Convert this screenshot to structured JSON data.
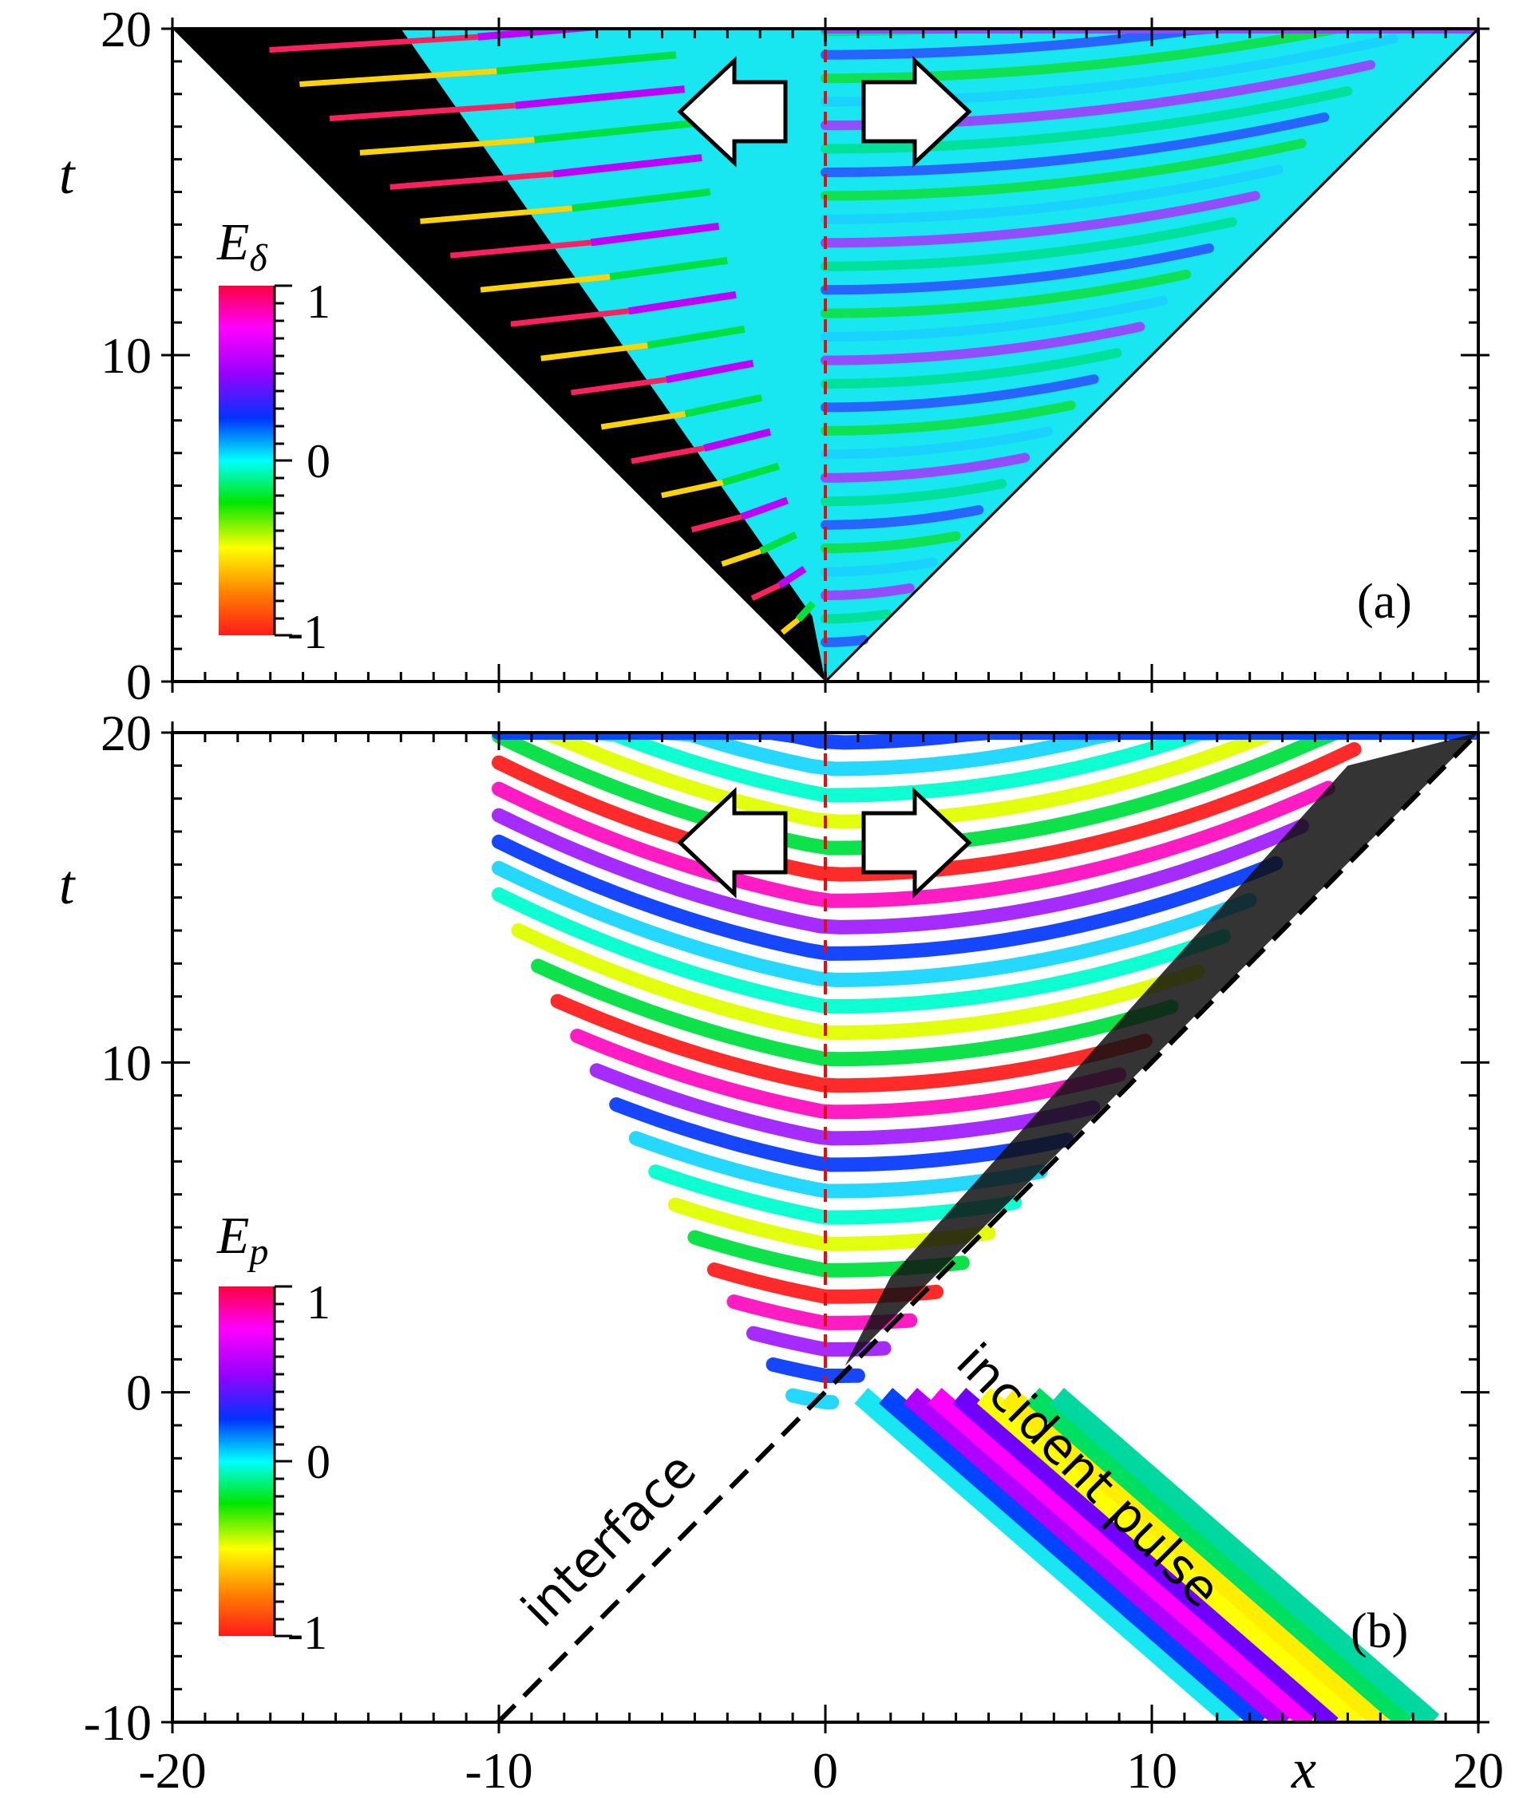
{
  "chart_data": [
    {
      "type": "heatmap",
      "panel_label": "(a)",
      "xlabel": "x",
      "ylabel": "t",
      "xlim": [
        -20,
        20
      ],
      "ylim": [
        0,
        20
      ],
      "x_ticks": [
        "-20",
        "-10",
        "0",
        "10",
        "20"
      ],
      "y_ticks": [
        "0",
        "10",
        "20"
      ],
      "colorbar": {
        "title_main": "E",
        "title_sub": "δ",
        "range": [
          -1,
          1
        ],
        "ticks": [
          "1",
          "0",
          "-1"
        ]
      },
      "colormap": [
        "#ff1a1a",
        "#ff8000",
        "#ffff00",
        "#00e600",
        "#00ffff",
        "#0033ff",
        "#9900ff",
        "#ff00ff",
        "#ff0040"
      ],
      "field_support": "|x| <= t (light cone from origin)",
      "interface_x": 0,
      "arrows": [
        "left",
        "right"
      ]
    },
    {
      "type": "heatmap",
      "panel_label": "(b)",
      "xlabel": "x",
      "ylabel": "t",
      "xlim": [
        -20,
        20
      ],
      "ylim": [
        -10,
        20
      ],
      "x_ticks": [
        "-20",
        "-10",
        "0",
        "10",
        "20"
      ],
      "y_ticks": [
        "-10",
        "0",
        "10",
        "20"
      ],
      "colorbar": {
        "title_main": "E",
        "title_sub": "p",
        "range": [
          -1,
          1
        ],
        "ticks": [
          "1",
          "0",
          "-1"
        ]
      },
      "colormap": [
        "#ff1a1a",
        "#ff8000",
        "#ffff00",
        "#00e600",
        "#00ffff",
        "#0033ff",
        "#9900ff",
        "#ff00ff",
        "#ff0040"
      ],
      "interface_line": {
        "from": [
          -10,
          -10
        ],
        "to": [
          20,
          20
        ]
      },
      "incident_pulse_direction": "x = -t",
      "annotations": [
        "interface",
        "incident pulse"
      ],
      "interface_x": 0,
      "arrows": [
        "left",
        "right"
      ]
    }
  ]
}
